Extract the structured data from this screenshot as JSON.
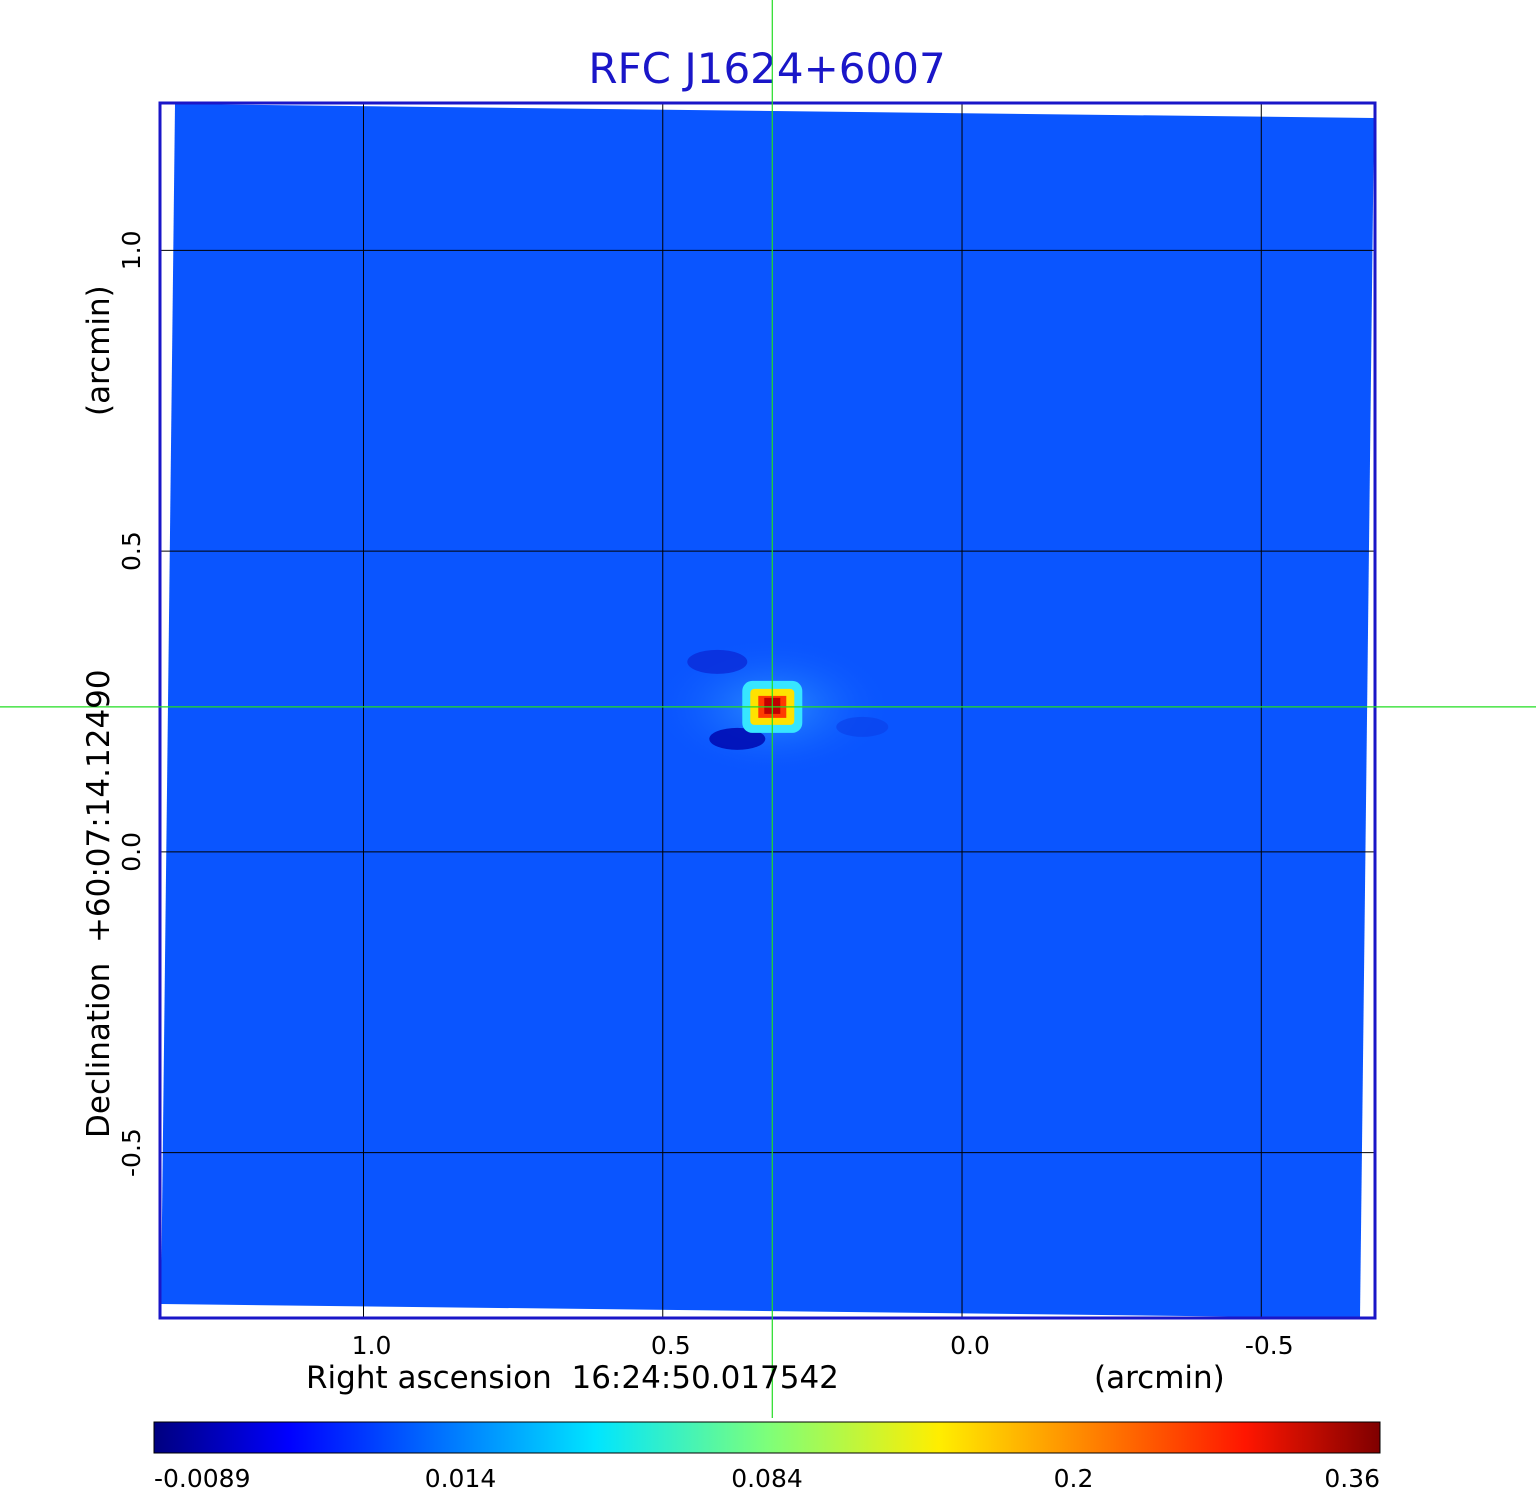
{
  "chart_data": {
    "type": "heatmap",
    "title": "RFC J1624+6007",
    "xlabel": "Right ascension  16:24:50.017542",
    "xunit": "(arcmin)",
    "ylabel": "Declination  +60:07:14.12490",
    "yunit": "(arcmin)",
    "xlim": [
      1.34,
      -0.69
    ],
    "ylim": [
      -0.775,
      1.245
    ],
    "x_ticks": [
      {
        "value": 1.0,
        "label": "1.0"
      },
      {
        "value": 0.5,
        "label": "0.5"
      },
      {
        "value": 0.0,
        "label": "0.0"
      },
      {
        "value": -0.5,
        "label": "-0.5"
      }
    ],
    "y_ticks": [
      {
        "value": 1.0,
        "label": "1.0"
      },
      {
        "value": 0.5,
        "label": "0.5"
      },
      {
        "value": 0.0,
        "label": "0.0"
      },
      {
        "value": -0.5,
        "label": "-0.5"
      }
    ],
    "grid": true,
    "crosshair": {
      "x": 0.317,
      "y": 0.241,
      "color": "#22dd22"
    },
    "source_peak": {
      "x": 0.317,
      "y": 0.241,
      "value": 0.36
    },
    "colorbar": {
      "colormap": "jet",
      "ticks": [
        {
          "value": -0.0089,
          "label": "-0.0089"
        },
        {
          "value": 0.014,
          "label": "0.014"
        },
        {
          "value": 0.084,
          "label": "0.084"
        },
        {
          "value": 0.2,
          "label": "0.2"
        },
        {
          "value": 0.36,
          "label": "0.36"
        }
      ]
    },
    "colors": {
      "title": "#1a16c8",
      "frame": "#1a16c8",
      "background_map": "#0a55ff"
    }
  }
}
